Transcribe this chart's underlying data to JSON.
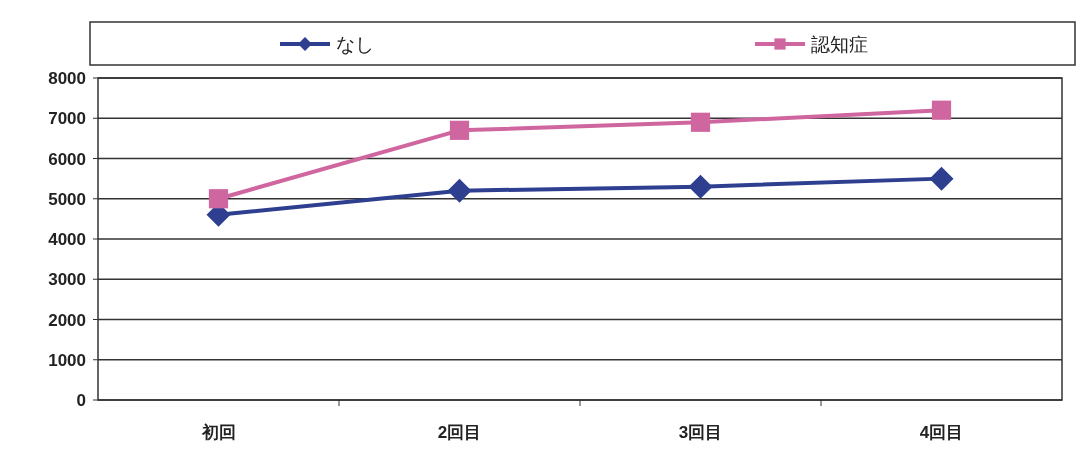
{
  "chart_data": {
    "type": "line",
    "categories": [
      "初回",
      "2回目",
      "3回目",
      "4回目"
    ],
    "series": [
      {
        "name": "なし",
        "color": "#2e3f8f",
        "marker": "diamond",
        "values": [
          4600,
          5200,
          5300,
          5500
        ]
      },
      {
        "name": "認知症",
        "color": "#d0669f",
        "marker": "square",
        "values": [
          5000,
          6700,
          6900,
          7200
        ]
      }
    ],
    "ylim": [
      0,
      8000
    ],
    "yticks": [
      0,
      1000,
      2000,
      3000,
      4000,
      5000,
      6000,
      7000,
      8000
    ],
    "grid": "y",
    "legend": "top",
    "line_style": "solid"
  }
}
